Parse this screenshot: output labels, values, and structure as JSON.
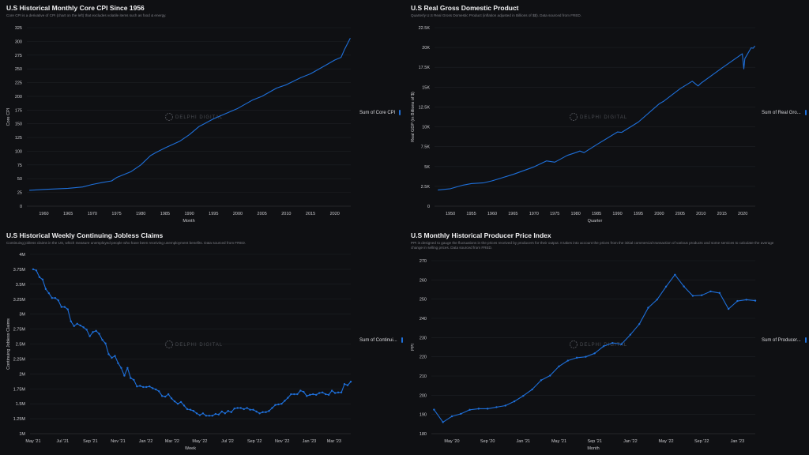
{
  "watermark": "DELPHI DIGITAL",
  "colors": {
    "line": "#1e6fd9",
    "grid": "#1e2025",
    "background": "#0f1013"
  },
  "panels": [
    {
      "title": "U.S Historical Monthly Core CPI Since 1956",
      "subtitle": "Core CPI is a derivative of CPI (chart on the left) that excludes volatile items such as food & energy.",
      "legend": "Sum of Core CPI"
    },
    {
      "title": "U.S Real Gross Domestic Product",
      "subtitle": "Quarterly U.S Real Gross Domestic Product (inflation adjusted in Billions of $$). Data sourced from FRED.",
      "legend": "Sum of Real Gro..."
    },
    {
      "title": "U.S Historical Weekly Continuing Jobless Claims",
      "subtitle": "Continuing jobless claims in the US, which measure unemployed people who have been receiving unemployment benefits. Data sourced from FRED.",
      "legend": "Sum of Continui..."
    },
    {
      "title": "U.S Monthly Historical Producer Price Index",
      "subtitle": "PPI is designed to gauge the fluctuations in the prices received by producers for their output. It takes into account the prices from the initial commercial transaction of various products and some services to calculate the average change in selling prices. Data sourced from FRED.",
      "legend": "Sum of Producer..."
    }
  ],
  "chart_data": [
    {
      "type": "line",
      "title": "U.S Historical Monthly Core CPI Since 1956",
      "xlabel": "Month",
      "ylabel": "Core CPI",
      "xlim": [
        1956.5,
        2023.3
      ],
      "ylim": [
        0,
        325
      ],
      "markers": false,
      "yticks": [
        0,
        25,
        50,
        75,
        100,
        125,
        150,
        175,
        200,
        225,
        250,
        275,
        300,
        325
      ],
      "ytick_labels": [
        "0",
        "25",
        "50",
        "75",
        "100",
        "125",
        "150",
        "175",
        "200",
        "225",
        "250",
        "275",
        "300",
        "325"
      ],
      "xticks": [
        1960,
        1965,
        1970,
        1975,
        1980,
        1985,
        1990,
        1995,
        2000,
        2005,
        2010,
        2015,
        2020
      ],
      "xtick_labels": [
        "1960",
        "1965",
        "1970",
        "1975",
        "1980",
        "1985",
        "1990",
        "1995",
        "2000",
        "2005",
        "2010",
        "2015",
        "2020"
      ],
      "x": [
        1957,
        1960,
        1965,
        1968,
        1970,
        1972,
        1974,
        1975,
        1978,
        1980,
        1982,
        1983,
        1985,
        1988,
        1990,
        1992,
        1995,
        2000,
        2003,
        2005,
        2008,
        2010,
        2013,
        2015,
        2018,
        2020,
        2021.3,
        2022,
        2023.2
      ],
      "y": [
        28.9,
        30.5,
        32.5,
        35,
        39.5,
        43,
        46,
        52,
        63,
        75,
        92,
        97,
        106,
        118,
        130,
        145,
        159,
        178,
        193,
        200,
        215,
        221,
        234,
        241,
        256,
        266,
        271,
        285,
        306
      ]
    },
    {
      "type": "line",
      "title": "U.S Real Gross Domestic Product",
      "xlabel": "Quarter",
      "ylabel": "Real GDP (in Billions of $)",
      "xlim": [
        1946.2,
        2023
      ],
      "ylim": [
        0,
        22500
      ],
      "markers": false,
      "yticks": [
        0,
        2500,
        5000,
        7500,
        10000,
        12500,
        15000,
        17500,
        20000,
        22500
      ],
      "ytick_labels": [
        "0",
        "2.5K",
        "5K",
        "7.5K",
        "10K",
        "12.5K",
        "15K",
        "17.5K",
        "20K",
        "22.5K"
      ],
      "xticks": [
        1950,
        1955,
        1960,
        1965,
        1970,
        1975,
        1980,
        1985,
        1990,
        1995,
        2000,
        2005,
        2010,
        2015,
        2020
      ],
      "xtick_labels": [
        "1950",
        "1955",
        "1960",
        "1965",
        "1970",
        "1975",
        "1980",
        "1985",
        "1990",
        "1995",
        "2000",
        "2005",
        "2010",
        "2015",
        "2020"
      ],
      "x": [
        1947,
        1950,
        1953,
        1955,
        1958,
        1960,
        1965,
        1970,
        1973,
        1975,
        1978,
        1980,
        1981,
        1982,
        1985,
        1990,
        1991,
        1995,
        2000,
        2001,
        2005,
        2007.9,
        2009.3,
        2010,
        2015,
        2019.9,
        2020.25,
        2020.5,
        2022,
        2022.5,
        2022.9
      ],
      "y": [
        2030,
        2200,
        2650,
        2850,
        2950,
        3200,
        4000,
        4950,
        5700,
        5550,
        6400,
        6750,
        6950,
        6750,
        7750,
        9350,
        9300,
        10600,
        12900,
        13200,
        14800,
        15750,
        15150,
        15500,
        17400,
        19200,
        17300,
        18600,
        19950,
        19900,
        20200
      ]
    },
    {
      "type": "line",
      "title": "U.S Historical Weekly Continuing Jobless Claims",
      "xlabel": "Week",
      "ylabel": "Continuing Jobless Claims",
      "xlim": [
        -1,
        101
      ],
      "ylim": [
        1,
        4
      ],
      "markers": true,
      "yticks": [
        1,
        1.25,
        1.5,
        1.75,
        2,
        2.25,
        2.5,
        2.75,
        3,
        3.25,
        3.5,
        3.75,
        4
      ],
      "ytick_labels": [
        "1M",
        "1.25M",
        "1.5M",
        "1.75M",
        "2M",
        "2.25M",
        "2.5M",
        "2.75M",
        "3M",
        "3.25M",
        "3.5M",
        "3.75M",
        "4M"
      ],
      "xticks": [
        0,
        9.4,
        18.2,
        27,
        35.8,
        44.2,
        53,
        61.8,
        70.4,
        79.2,
        87.8,
        95.7
      ],
      "xtick_labels": [
        "May '21",
        "Jul '21",
        "Sep '21",
        "Nov '21",
        "Jan '22",
        "Mar '22",
        "May '22",
        "Jul '22",
        "Sep '22",
        "Nov '22",
        "Jan '23",
        "Mar '23"
      ],
      "y_unit": "millions",
      "y": [
        3.75,
        3.73,
        3.62,
        3.58,
        3.42,
        3.35,
        3.27,
        3.27,
        3.23,
        3.12,
        3.12,
        3.08,
        2.88,
        2.8,
        2.84,
        2.81,
        2.78,
        2.74,
        2.63,
        2.7,
        2.72,
        2.67,
        2.57,
        2.51,
        2.33,
        2.27,
        2.3,
        2.18,
        2.1,
        1.97,
        2.1,
        1.93,
        1.9,
        1.79,
        1.8,
        1.78,
        1.78,
        1.79,
        1.76,
        1.74,
        1.71,
        1.63,
        1.62,
        1.66,
        1.59,
        1.54,
        1.5,
        1.53,
        1.47,
        1.41,
        1.4,
        1.38,
        1.34,
        1.31,
        1.34,
        1.3,
        1.3,
        1.3,
        1.33,
        1.32,
        1.37,
        1.34,
        1.38,
        1.36,
        1.42,
        1.43,
        1.43,
        1.41,
        1.43,
        1.4,
        1.4,
        1.37,
        1.34,
        1.36,
        1.36,
        1.38,
        1.43,
        1.48,
        1.49,
        1.5,
        1.55,
        1.6,
        1.66,
        1.66,
        1.66,
        1.72,
        1.7,
        1.63,
        1.65,
        1.66,
        1.65,
        1.68,
        1.69,
        1.66,
        1.65,
        1.72,
        1.68,
        1.69,
        1.69,
        1.83,
        1.81,
        1.87
      ]
    },
    {
      "type": "line",
      "title": "U.S Monthly Historical Producer Price Index",
      "xlabel": "Month",
      "ylabel": "PPI",
      "xlim": [
        -0.3,
        36
      ],
      "ylim": [
        180,
        270
      ],
      "markers": true,
      "yticks": [
        180,
        190,
        200,
        210,
        220,
        230,
        240,
        250,
        260,
        270
      ],
      "ytick_labels": [
        "180",
        "190",
        "200",
        "210",
        "220",
        "230",
        "240",
        "250",
        "260",
        "270"
      ],
      "xticks": [
        2,
        6,
        10,
        14,
        18,
        22,
        26,
        30,
        34
      ],
      "xtick_labels": [
        "May '20",
        "Sep '20",
        "Jan '21",
        "May '21",
        "Sep '21",
        "Jan '22",
        "May '22",
        "Sep '22",
        "Jan '23"
      ],
      "y": [
        192.5,
        186,
        189,
        190.3,
        192.4,
        193,
        193,
        193.8,
        194.6,
        196.8,
        199.7,
        203,
        207.8,
        210.2,
        215,
        218,
        219.5,
        220,
        221.8,
        225.5,
        227.2,
        226.5,
        231.5,
        237,
        245.5,
        249.8,
        256.5,
        262.7,
        256.6,
        251.7,
        252,
        254,
        253.2,
        244.9,
        249,
        249.7,
        249.2
      ]
    }
  ]
}
